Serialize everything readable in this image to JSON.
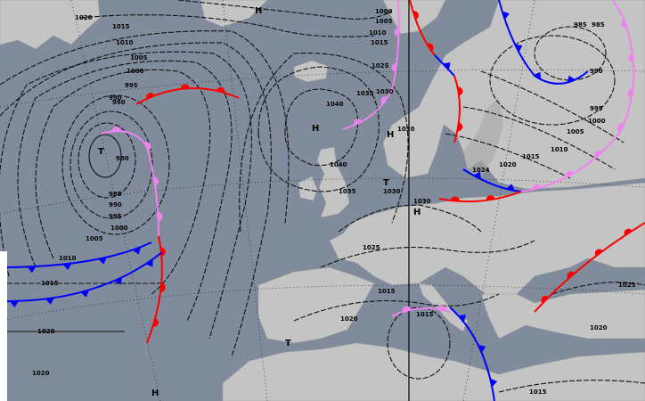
{
  "map": {
    "type": "surface pressure analysis",
    "colors": {
      "sea": "#808b9c",
      "land": "#c4c4c4",
      "isobar": "#111111",
      "warm_front": "#ff0000",
      "cold_front": "#0000ff",
      "occluded_front": "#ee82ee"
    },
    "pressure_labels": [
      "1020",
      "1015",
      "1010",
      "1005",
      "1000",
      "995",
      "990",
      "990",
      "980",
      "985",
      "990",
      "995",
      "1000",
      "1005",
      "1010",
      "1015",
      "1020",
      "1020",
      "1000",
      "1005",
      "1010",
      "1015",
      "1025",
      "1030",
      "1035",
      "1040",
      "1040",
      "1035",
      "1030",
      "1030",
      "1030",
      "1025",
      "1020",
      "1015",
      "1015",
      "1015",
      "1024",
      "1020",
      "1015",
      "1010",
      "1005",
      "1000",
      "995",
      "990",
      "985",
      "985",
      "1025",
      "1020"
    ],
    "centers": [
      {
        "type": "high",
        "label": "H"
      },
      {
        "type": "high",
        "label": "H"
      },
      {
        "type": "high",
        "label": "H"
      },
      {
        "type": "high",
        "label": "H"
      },
      {
        "type": "high",
        "label": "H"
      },
      {
        "type": "low",
        "label": "T"
      },
      {
        "type": "low",
        "label": "T"
      },
      {
        "type": "low",
        "label": "T"
      }
    ]
  }
}
